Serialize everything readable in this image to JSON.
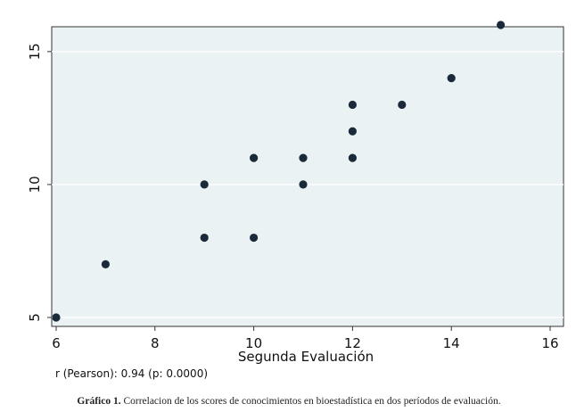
{
  "chart_data": {
    "type": "scatter",
    "xlabel": "Segunda Evaluación",
    "ylabel": "",
    "xlim": [
      6,
      16
    ],
    "ylim": [
      5,
      16
    ],
    "xticks": [
      6,
      8,
      10,
      12,
      14,
      16
    ],
    "yticks": [
      5,
      10,
      15
    ],
    "grid": true,
    "points": [
      {
        "x": 6,
        "y": 5
      },
      {
        "x": 7,
        "y": 7
      },
      {
        "x": 9,
        "y": 8
      },
      {
        "x": 9,
        "y": 10
      },
      {
        "x": 10,
        "y": 8
      },
      {
        "x": 10,
        "y": 11
      },
      {
        "x": 11,
        "y": 10
      },
      {
        "x": 11,
        "y": 11
      },
      {
        "x": 12,
        "y": 11
      },
      {
        "x": 12,
        "y": 12
      },
      {
        "x": 12,
        "y": 13
      },
      {
        "x": 13,
        "y": 13
      },
      {
        "x": 14,
        "y": 14
      },
      {
        "x": 15,
        "y": 16
      }
    ],
    "annotation": "r (Pearson): 0.94 (p: 0.0000)",
    "colors": {
      "plot_background": "#eaf2f3",
      "points": "#1b2a3a",
      "grid": "#ffffff",
      "frame": "#333333"
    }
  },
  "caption": {
    "label": "Gráfico 1.",
    "text": "Correlacion de los scores de conocimientos en bioestadística en dos períodos de evaluación."
  }
}
